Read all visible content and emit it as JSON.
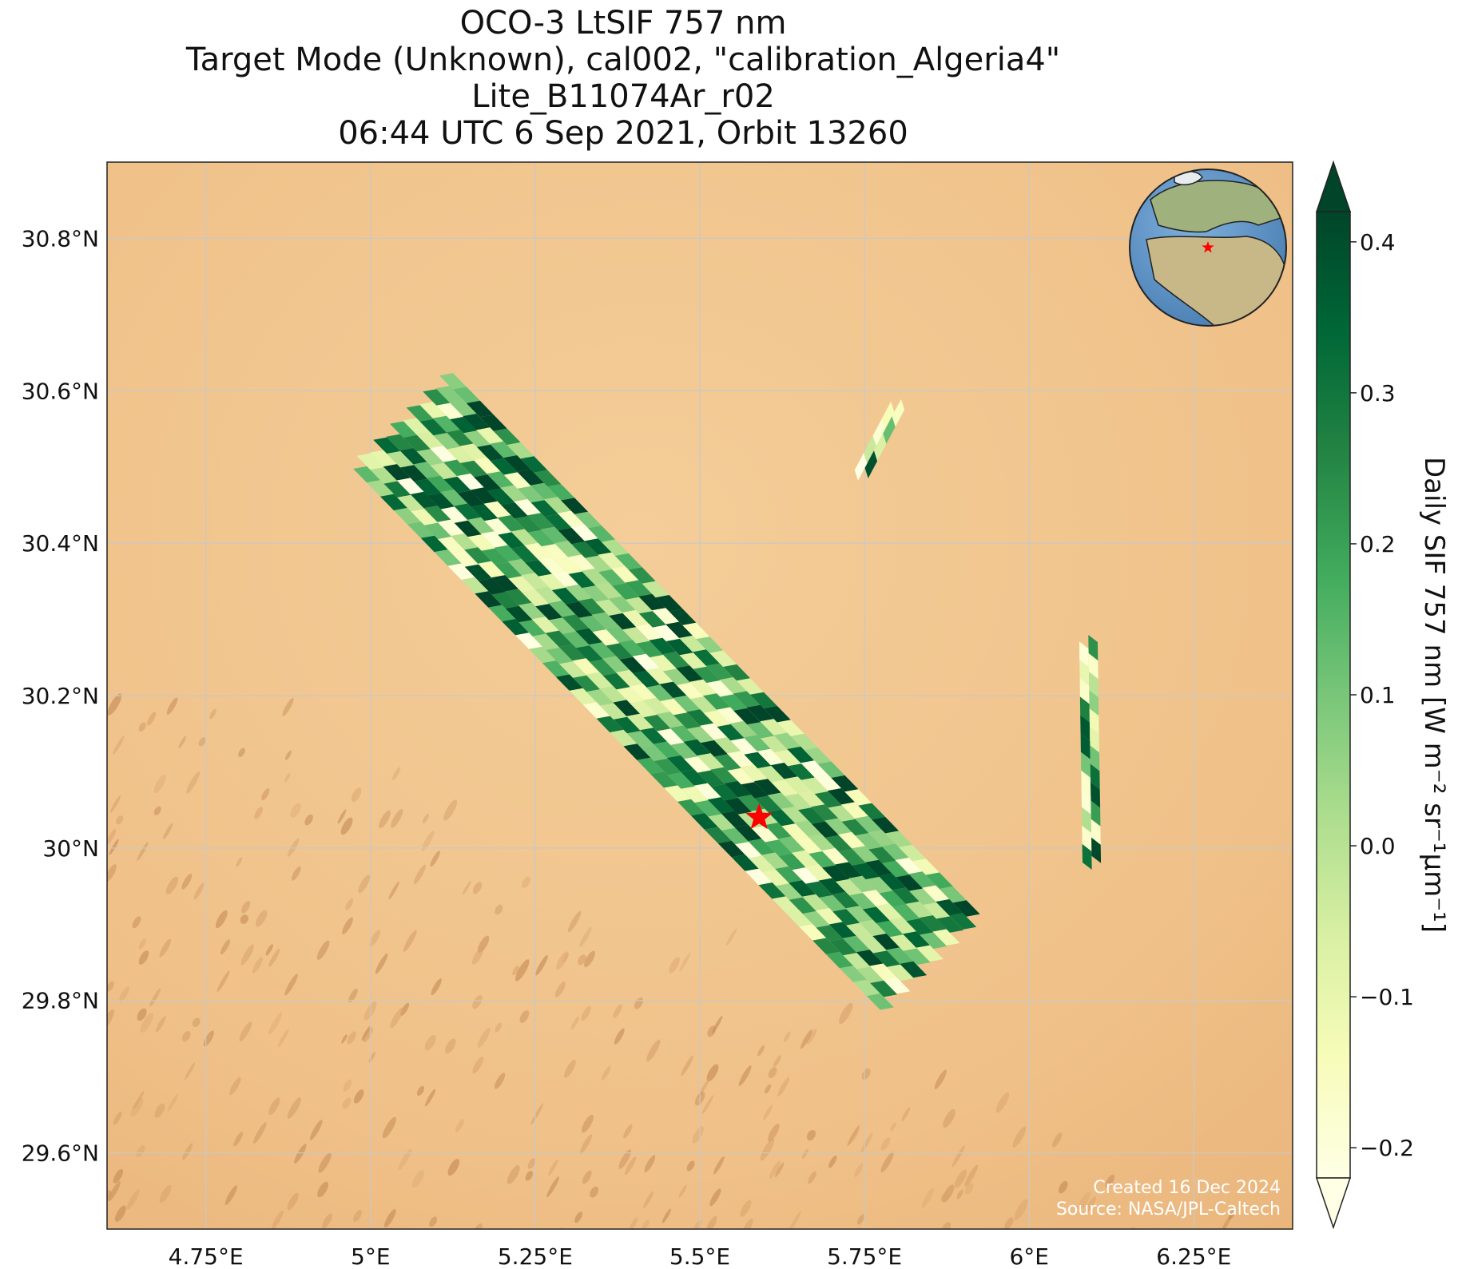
{
  "title": {
    "line1": "OCO-3 LtSIF 757 nm",
    "line2": "Target Mode (Unknown), cal002, \"calibration_Algeria4\"",
    "line3": "Lite_B11074Ar_r02",
    "line4": "06:44 UTC 6 Sep 2021, Orbit 13260"
  },
  "map": {
    "lon_range": [
      4.6,
      6.4
    ],
    "lat_range": [
      29.5,
      30.9
    ],
    "x_ticks": [
      {
        "value": 4.75,
        "label": "4.75°E"
      },
      {
        "value": 5.0,
        "label": "5°E"
      },
      {
        "value": 5.25,
        "label": "5.25°E"
      },
      {
        "value": 5.5,
        "label": "5.5°E"
      },
      {
        "value": 5.75,
        "label": "5.75°E"
      },
      {
        "value": 6.0,
        "label": "6°E"
      },
      {
        "value": 6.25,
        "label": "6.25°E"
      }
    ],
    "y_ticks": [
      {
        "value": 29.6,
        "label": "29.6°N"
      },
      {
        "value": 29.8,
        "label": "29.8°N"
      },
      {
        "value": 30.0,
        "label": "30°N"
      },
      {
        "value": 30.2,
        "label": "30.2°N"
      },
      {
        "value": 30.4,
        "label": "30.4°N"
      },
      {
        "value": 30.6,
        "label": "30.6°N"
      },
      {
        "value": 30.8,
        "label": "30.8°N"
      }
    ],
    "grid": true,
    "background": "desert satellite imagery (sand, dune field in south-west)",
    "target_marker": {
      "lon": 5.59,
      "lat": 30.04,
      "symbol": "star",
      "color": "#ff0000"
    },
    "inset": {
      "type": "globe",
      "marker": "star",
      "placement": "top-right"
    },
    "credits": {
      "created": "Created 16 Dec 2024",
      "source": "Source: NASA/JPL-Caltech"
    }
  },
  "swaths": [
    {
      "name": "main-swath",
      "lon_start": 5.05,
      "lat_start": 30.56,
      "lon_end": 5.85,
      "lat_end": 29.85,
      "half_width_deg": 0.105
    },
    {
      "name": "east-strip-north",
      "lon_start": 5.8,
      "lat_start": 30.58,
      "lon_end": 5.745,
      "lat_end": 30.49,
      "half_width_deg": 0.012
    },
    {
      "name": "east-strip-south",
      "lon_start": 6.09,
      "lat_start": 30.27,
      "lon_end": 6.095,
      "lat_end": 29.98,
      "half_width_deg": 0.014
    }
  ],
  "colorbar": {
    "label": "Daily SIF 757 nm [W m⁻² sr⁻¹μm⁻¹]",
    "min": -0.22,
    "max": 0.42,
    "extend": "both",
    "colormap": "Greens",
    "ticks": [
      {
        "value": -0.2,
        "label": "−0.2"
      },
      {
        "value": -0.1,
        "label": "−0.1"
      },
      {
        "value": 0.0,
        "label": "0.0"
      },
      {
        "value": 0.1,
        "label": "0.1"
      },
      {
        "value": 0.2,
        "label": "0.2"
      },
      {
        "value": 0.3,
        "label": "0.3"
      },
      {
        "value": 0.4,
        "label": "0.4"
      }
    ],
    "stops": [
      "#ffffe5",
      "#f7fcb9",
      "#d9f0a3",
      "#addd8e",
      "#78c679",
      "#41ab5d",
      "#238443",
      "#006837",
      "#004529"
    ],
    "under_color": "#ffffe5",
    "over_color": "#004529"
  },
  "colors": {
    "sand": "#f0c48c",
    "ocean": "#5b93c8",
    "land": "#b8b07a",
    "marker": "#ff0000"
  }
}
